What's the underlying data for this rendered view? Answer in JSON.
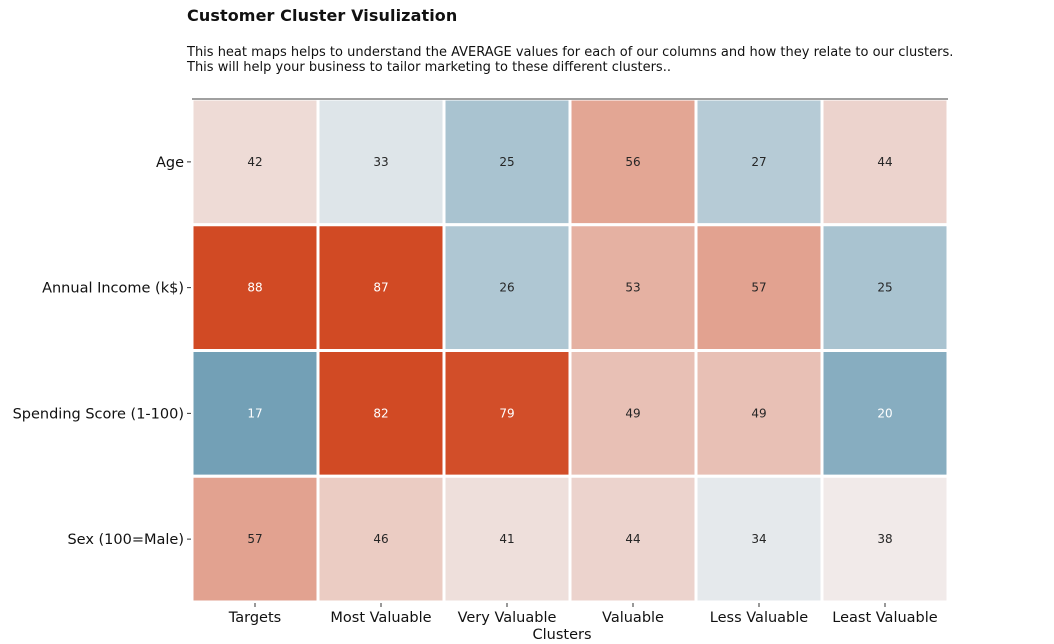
{
  "header": {
    "title": "Customer Cluster Visulization",
    "description_line1": "This heat maps helps to understand the AVERAGE values for each of our columns and how they relate to our clusters.",
    "description_line2": "This will help your business to tailor marketing to these different clusters.."
  },
  "chart_data": {
    "type": "heatmap",
    "title": "Customer Cluster Visulization",
    "xlabel": "Clusters",
    "ylabel": "",
    "x_categories": [
      "Targets",
      "Most Valuable",
      "Very Valuable",
      "Valuable",
      "Less Valuable",
      "Least Valuable"
    ],
    "y_categories": [
      "Age",
      "Annual Income (k$)",
      "Spending Score (1-100)",
      "Sex (100=Male)"
    ],
    "values": [
      [
        42,
        33,
        25,
        56,
        27,
        44
      ],
      [
        88,
        87,
        26,
        53,
        57,
        25
      ],
      [
        17,
        82,
        79,
        49,
        49,
        20
      ],
      [
        57,
        46,
        41,
        44,
        34,
        38
      ]
    ],
    "annotations": true,
    "colorbar": false,
    "colormap": "diverging blue-white-orange",
    "colors": {
      "low": "#5f93ad",
      "mid": "#f2f2f2",
      "high": "#d14a24",
      "cell_border": "#ffffff",
      "top_line": "#808080",
      "annotation_light": "#ffffff",
      "annotation_dark": "#262626"
    }
  }
}
